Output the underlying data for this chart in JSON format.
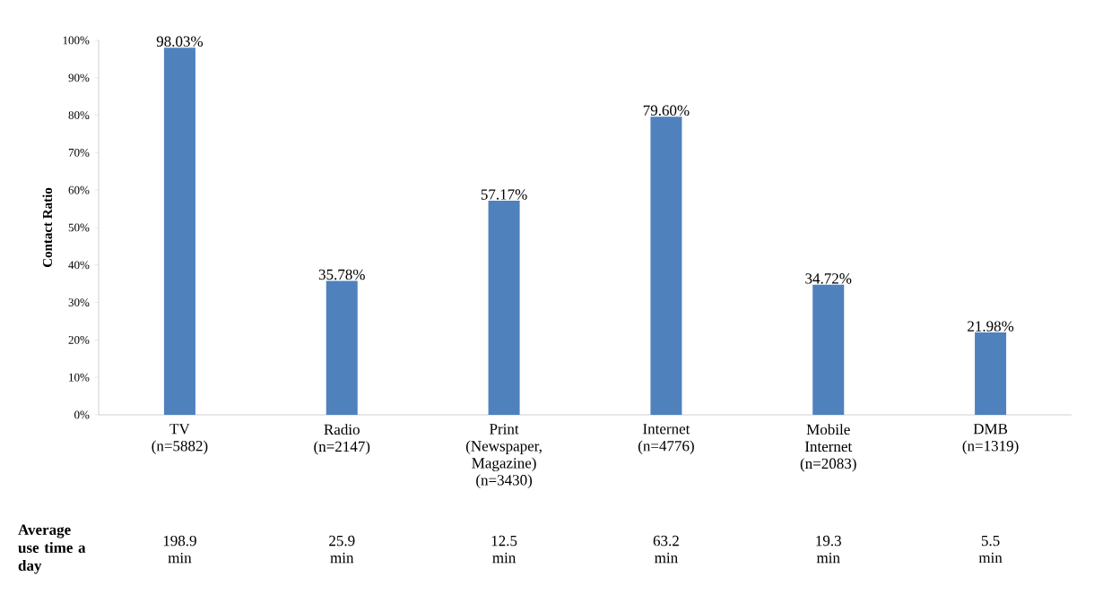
{
  "chart_data": {
    "type": "bar",
    "ylabel": "Contact Ratio",
    "categories": [
      "TV (n=5882)",
      "Radio (n=2147)",
      "Print (Newspaper, Magazine) (n=3430)",
      "Internet (n=4776)",
      "Mobile Internet (n=2083)",
      "DMB (n=1319)"
    ],
    "values": [
      98.03,
      35.78,
      57.17,
      79.6,
      34.72,
      21.98
    ],
    "value_labels": [
      "98.03%",
      "35.78%",
      "57.17%",
      "79.60%",
      "34.72%",
      "21.98%"
    ],
    "color": "#4f81bd",
    "ylim": [
      0,
      100
    ],
    "yticks": [
      {
        "value": 0,
        "label": "0%"
      },
      {
        "value": 10,
        "label": "10%"
      },
      {
        "value": 20,
        "label": "20%"
      },
      {
        "value": 30,
        "label": "30%"
      },
      {
        "value": 40,
        "label": "40%"
      },
      {
        "value": 50,
        "label": "50%"
      },
      {
        "value": 60,
        "label": "60%"
      },
      {
        "value": 70,
        "label": "70%"
      },
      {
        "value": 80,
        "label": "80%"
      },
      {
        "value": 90,
        "label": "90%"
      },
      {
        "value": 100,
        "label": "100%"
      }
    ],
    "annotations": [
      "Average use time a day",
      "198.9 min",
      "25.9 min",
      "12.5 min",
      "63.2 min",
      "19.3 min",
      "5.5 min"
    ]
  }
}
